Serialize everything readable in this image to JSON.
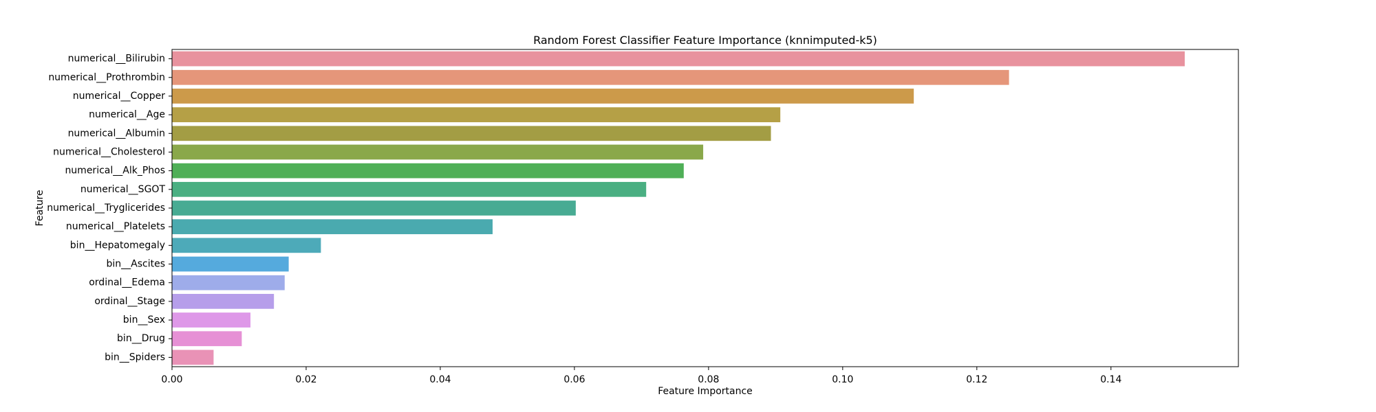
{
  "chart_data": {
    "type": "bar",
    "orientation": "horizontal",
    "title": "Random Forest Classifier Feature Importance (knnimputed-k5)",
    "xlabel": "Feature Importance",
    "ylabel": "Feature",
    "xlim": [
      0,
      0.159
    ],
    "xticks": [
      "0.00",
      "0.02",
      "0.04",
      "0.06",
      "0.08",
      "0.10",
      "0.12",
      "0.14"
    ],
    "grid": false,
    "categories": [
      "numerical__Bilirubin",
      "numerical__Prothrombin",
      "numerical__Copper",
      "numerical__Age",
      "numerical__Albumin",
      "numerical__Cholesterol",
      "numerical__Alk_Phos",
      "numerical__SGOT",
      "numerical__Tryglicerides",
      "numerical__Platelets",
      "bin__Hepatomegaly",
      "bin__Ascites",
      "ordinal__Edema",
      "ordinal__Stage",
      "bin__Sex",
      "bin__Drug",
      "bin__Spiders"
    ],
    "values": [
      0.151,
      0.1248,
      0.1106,
      0.0907,
      0.0893,
      0.0792,
      0.0763,
      0.0707,
      0.0602,
      0.0478,
      0.0222,
      0.0174,
      0.0168,
      0.0152,
      0.0117,
      0.0104,
      0.0062
    ],
    "colors": [
      "#e8929e",
      "#e5967a",
      "#cc9a4a",
      "#b5a046",
      "#a39d44",
      "#8aa84a",
      "#4faf57",
      "#4aaf82",
      "#48ab93",
      "#4aaaaf",
      "#4daab9",
      "#55aadd",
      "#9eacea",
      "#b69eea",
      "#de98e8",
      "#e690d5",
      "#e992b6"
    ]
  }
}
